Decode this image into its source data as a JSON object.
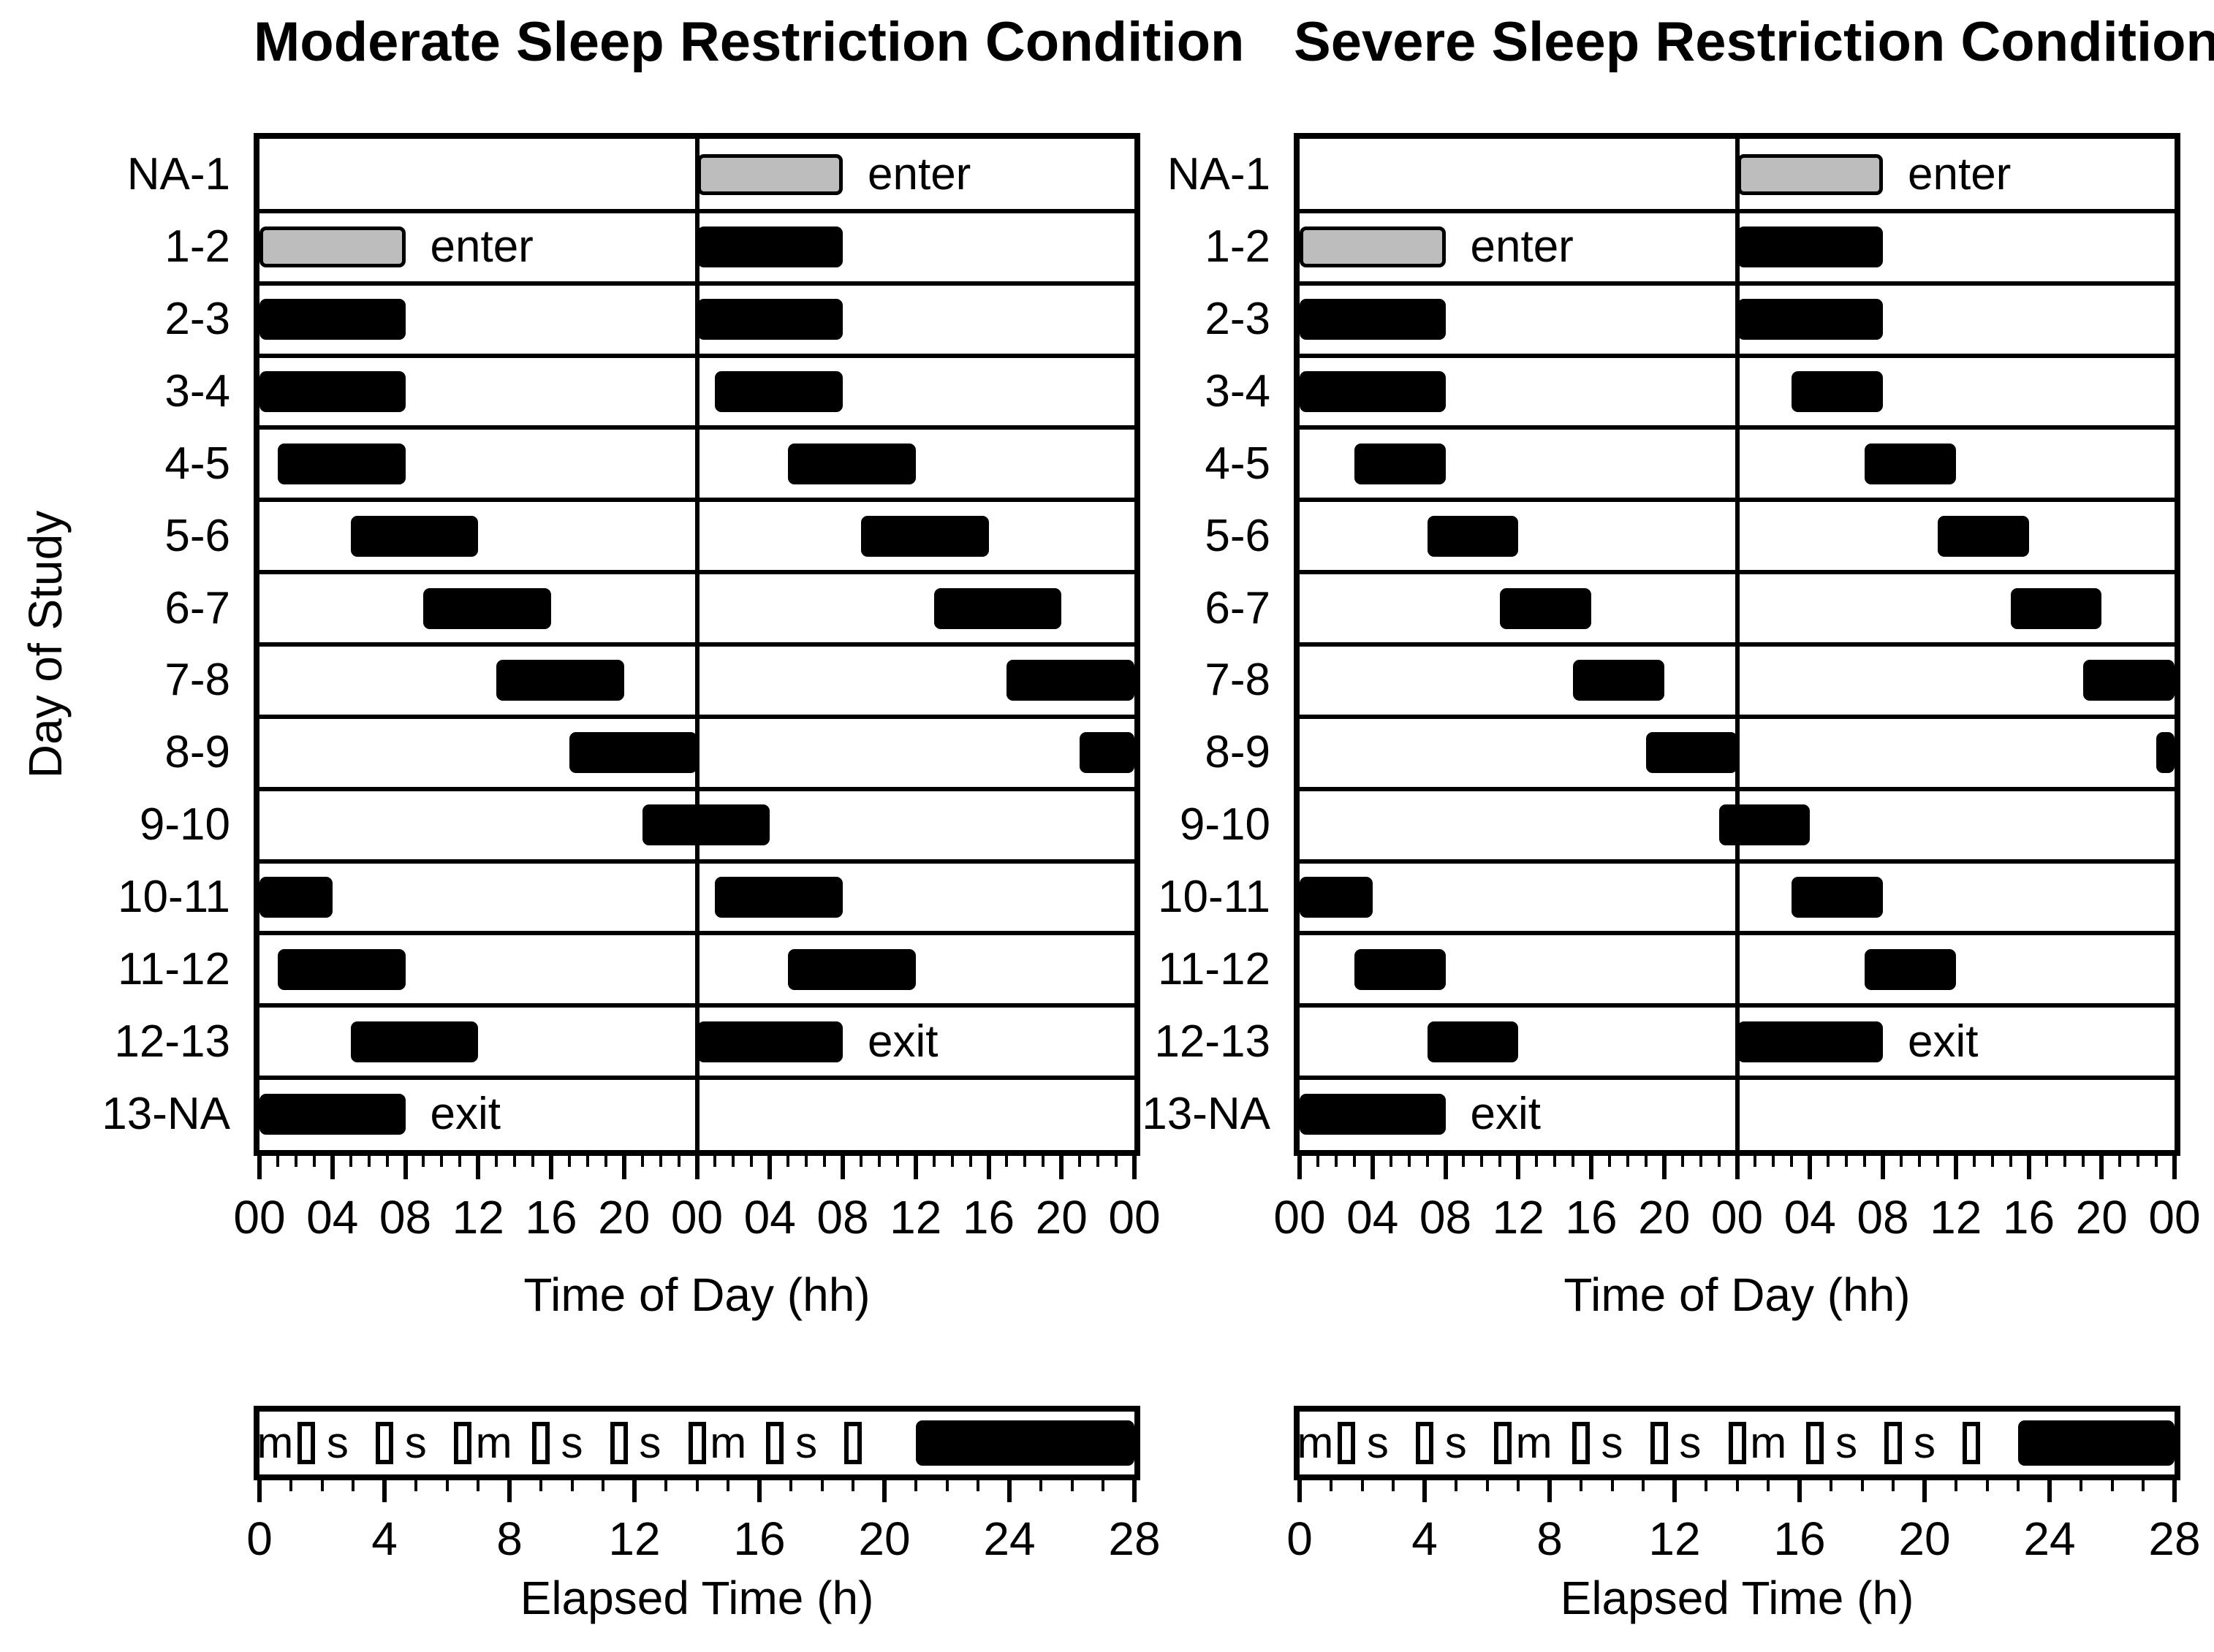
{
  "figure": {
    "y_axis_label": "Day of Study",
    "colors": {
      "bar_black": "#000000",
      "enter_gray": "#bdbdbd",
      "background": "#ffffff",
      "text": "#000000"
    }
  },
  "chart_data": {
    "type": "bar",
    "subtype": "double-plotted-sleep-raster",
    "x_unit": "hours clock time, double plotted 0-48",
    "panels": [
      {
        "id": "moderate",
        "title": "Moderate Sleep Restriction Condition",
        "x_axis_label": "Time of Day (hh)",
        "x_range_hours": [
          0,
          48
        ],
        "x_major_tick_step_h": 4,
        "x_minor_tick_step_h": 1,
        "x_tick_labels": [
          "00",
          "04",
          "08",
          "12",
          "16",
          "20",
          "00",
          "04",
          "08",
          "12",
          "16",
          "20",
          "00"
        ],
        "rows": [
          {
            "day": "NA-1",
            "bars": [
              {
                "start": 24,
                "end": 32,
                "style": "enter",
                "label": "enter"
              }
            ]
          },
          {
            "day": "1-2",
            "bars": [
              {
                "start": 0,
                "end": 8,
                "style": "enter",
                "label": "enter"
              },
              {
                "start": 24,
                "end": 32,
                "style": "sleep"
              }
            ]
          },
          {
            "day": "2-3",
            "bars": [
              {
                "start": 0,
                "end": 8,
                "style": "sleep"
              },
              {
                "start": 24,
                "end": 32,
                "style": "sleep"
              }
            ]
          },
          {
            "day": "3-4",
            "bars": [
              {
                "start": 0,
                "end": 8,
                "style": "sleep"
              },
              {
                "start": 25,
                "end": 32,
                "style": "sleep"
              }
            ]
          },
          {
            "day": "4-5",
            "bars": [
              {
                "start": 1,
                "end": 8,
                "style": "sleep"
              },
              {
                "start": 29,
                "end": 36,
                "style": "sleep"
              }
            ]
          },
          {
            "day": "5-6",
            "bars": [
              {
                "start": 5,
                "end": 12,
                "style": "sleep"
              },
              {
                "start": 33,
                "end": 40,
                "style": "sleep"
              }
            ]
          },
          {
            "day": "6-7",
            "bars": [
              {
                "start": 9,
                "end": 16,
                "style": "sleep"
              },
              {
                "start": 37,
                "end": 44,
                "style": "sleep"
              }
            ]
          },
          {
            "day": "7-8",
            "bars": [
              {
                "start": 13,
                "end": 20,
                "style": "sleep"
              },
              {
                "start": 41,
                "end": 48,
                "style": "sleep"
              }
            ]
          },
          {
            "day": "8-9",
            "bars": [
              {
                "start": 17,
                "end": 24,
                "style": "sleep"
              },
              {
                "start": 45,
                "end": 48,
                "style": "sleep"
              }
            ]
          },
          {
            "day": "9-10",
            "bars": [
              {
                "start": 21,
                "end": 28,
                "style": "sleep"
              }
            ]
          },
          {
            "day": "10-11",
            "bars": [
              {
                "start": 0,
                "end": 4,
                "style": "sleep"
              },
              {
                "start": 25,
                "end": 32,
                "style": "sleep"
              }
            ]
          },
          {
            "day": "11-12",
            "bars": [
              {
                "start": 1,
                "end": 8,
                "style": "sleep"
              },
              {
                "start": 29,
                "end": 36,
                "style": "sleep"
              }
            ]
          },
          {
            "day": "12-13",
            "bars": [
              {
                "start": 5,
                "end": 12,
                "style": "sleep"
              },
              {
                "start": 24,
                "end": 32,
                "style": "exit",
                "label": "exit"
              }
            ]
          },
          {
            "day": "13-NA",
            "bars": [
              {
                "start": 0,
                "end": 8,
                "style": "exit",
                "label": "exit"
              }
            ]
          }
        ],
        "elapsed": {
          "label": "Elapsed Time (h)",
          "range_hours": [
            0,
            28
          ],
          "tick_labels": [
            "0",
            "4",
            "8",
            "12",
            "16",
            "20",
            "24",
            "28"
          ],
          "markers": [
            {
              "t": 0.5,
              "g": "m"
            },
            {
              "t": 1.5,
              "g": "box"
            },
            {
              "t": 2.5,
              "g": "s"
            },
            {
              "t": 4.0,
              "g": "box"
            },
            {
              "t": 5.0,
              "g": "s"
            },
            {
              "t": 6.5,
              "g": "box"
            },
            {
              "t": 7.5,
              "g": "m"
            },
            {
              "t": 9.0,
              "g": "box"
            },
            {
              "t": 10.0,
              "g": "s"
            },
            {
              "t": 11.5,
              "g": "box"
            },
            {
              "t": 12.5,
              "g": "s"
            },
            {
              "t": 14.0,
              "g": "box"
            },
            {
              "t": 15.0,
              "g": "m"
            },
            {
              "t": 16.5,
              "g": "box"
            },
            {
              "t": 17.5,
              "g": "s"
            },
            {
              "t": 19.0,
              "g": "box"
            }
          ],
          "sleep_bar": {
            "start": 21,
            "end": 28
          }
        }
      },
      {
        "id": "severe",
        "title": "Severe Sleep Restriction Condition",
        "x_axis_label": "Time of Day (hh)",
        "x_range_hours": [
          0,
          48
        ],
        "x_major_tick_step_h": 4,
        "x_minor_tick_step_h": 1,
        "x_tick_labels": [
          "00",
          "04",
          "08",
          "12",
          "16",
          "20",
          "00",
          "04",
          "08",
          "12",
          "16",
          "20",
          "00"
        ],
        "rows": [
          {
            "day": "NA-1",
            "bars": [
              {
                "start": 24,
                "end": 32,
                "style": "enter",
                "label": "enter"
              }
            ]
          },
          {
            "day": "1-2",
            "bars": [
              {
                "start": 0,
                "end": 8,
                "style": "enter",
                "label": "enter"
              },
              {
                "start": 24,
                "end": 32,
                "style": "sleep"
              }
            ]
          },
          {
            "day": "2-3",
            "bars": [
              {
                "start": 0,
                "end": 8,
                "style": "sleep"
              },
              {
                "start": 24,
                "end": 32,
                "style": "sleep"
              }
            ]
          },
          {
            "day": "3-4",
            "bars": [
              {
                "start": 0,
                "end": 8,
                "style": "sleep"
              },
              {
                "start": 27,
                "end": 32,
                "style": "sleep"
              }
            ]
          },
          {
            "day": "4-5",
            "bars": [
              {
                "start": 3,
                "end": 8,
                "style": "sleep"
              },
              {
                "start": 31,
                "end": 36,
                "style": "sleep"
              }
            ]
          },
          {
            "day": "5-6",
            "bars": [
              {
                "start": 7,
                "end": 12,
                "style": "sleep"
              },
              {
                "start": 35,
                "end": 40,
                "style": "sleep"
              }
            ]
          },
          {
            "day": "6-7",
            "bars": [
              {
                "start": 11,
                "end": 16,
                "style": "sleep"
              },
              {
                "start": 39,
                "end": 44,
                "style": "sleep"
              }
            ]
          },
          {
            "day": "7-8",
            "bars": [
              {
                "start": 15,
                "end": 20,
                "style": "sleep"
              },
              {
                "start": 43,
                "end": 48,
                "style": "sleep"
              }
            ]
          },
          {
            "day": "8-9",
            "bars": [
              {
                "start": 19,
                "end": 24,
                "style": "sleep"
              },
              {
                "start": 47,
                "end": 48,
                "style": "sleep"
              }
            ]
          },
          {
            "day": "9-10",
            "bars": [
              {
                "start": 23,
                "end": 28,
                "style": "sleep"
              }
            ]
          },
          {
            "day": "10-11",
            "bars": [
              {
                "start": 0,
                "end": 4,
                "style": "sleep"
              },
              {
                "start": 27,
                "end": 32,
                "style": "sleep"
              }
            ]
          },
          {
            "day": "11-12",
            "bars": [
              {
                "start": 3,
                "end": 8,
                "style": "sleep"
              },
              {
                "start": 31,
                "end": 36,
                "style": "sleep"
              }
            ]
          },
          {
            "day": "12-13",
            "bars": [
              {
                "start": 7,
                "end": 12,
                "style": "sleep"
              },
              {
                "start": 24,
                "end": 32,
                "style": "exit",
                "label": "exit"
              }
            ]
          },
          {
            "day": "13-NA",
            "bars": [
              {
                "start": 0,
                "end": 8,
                "style": "exit",
                "label": "exit"
              }
            ]
          }
        ],
        "elapsed": {
          "label": "Elapsed Time (h)",
          "range_hours": [
            0,
            28
          ],
          "tick_labels": [
            "0",
            "4",
            "8",
            "12",
            "16",
            "20",
            "24",
            "28"
          ],
          "markers": [
            {
              "t": 0.5,
              "g": "m"
            },
            {
              "t": 1.5,
              "g": "box"
            },
            {
              "t": 2.5,
              "g": "s"
            },
            {
              "t": 4.0,
              "g": "box"
            },
            {
              "t": 5.0,
              "g": "s"
            },
            {
              "t": 6.5,
              "g": "box"
            },
            {
              "t": 7.5,
              "g": "m"
            },
            {
              "t": 9.0,
              "g": "box"
            },
            {
              "t": 10.0,
              "g": "s"
            },
            {
              "t": 11.5,
              "g": "box"
            },
            {
              "t": 12.5,
              "g": "s"
            },
            {
              "t": 14.0,
              "g": "box"
            },
            {
              "t": 15.0,
              "g": "m"
            },
            {
              "t": 16.5,
              "g": "box"
            },
            {
              "t": 17.5,
              "g": "s"
            },
            {
              "t": 19.0,
              "g": "box"
            },
            {
              "t": 20.0,
              "g": "s"
            },
            {
              "t": 21.5,
              "g": "box"
            }
          ],
          "sleep_bar": {
            "start": 23,
            "end": 28
          }
        }
      }
    ]
  }
}
